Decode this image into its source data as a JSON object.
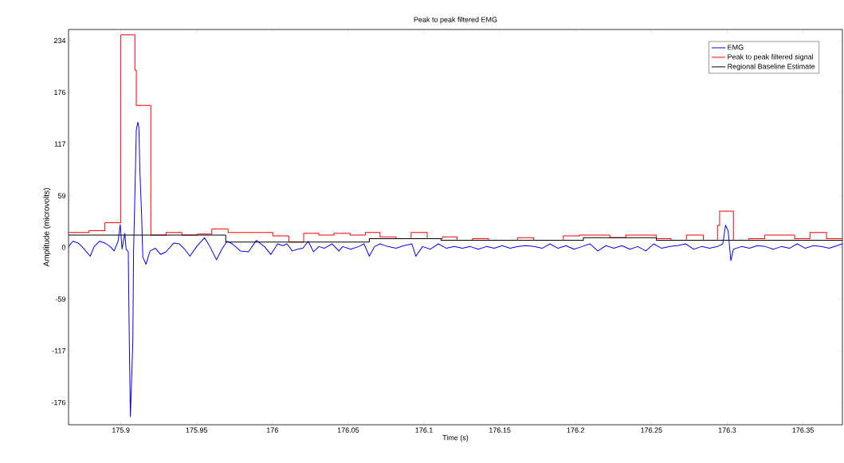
{
  "chart_data": {
    "type": "line",
    "title": "Peak to peak filtered EMG",
    "xlabel": "Time (s)",
    "ylabel": "Amplitude (microvolts)",
    "xlim": [
      175.8655,
      176.376
    ],
    "ylim": [
      -201,
      247
    ],
    "xticks": [
      175.9,
      175.95,
      176,
      176.05,
      176.1,
      176.15,
      176.2,
      176.25,
      176.3,
      176.35
    ],
    "yticks": [
      {
        "value": -175.8,
        "label": "-176"
      },
      {
        "value": -117.2,
        "label": "-117"
      },
      {
        "value": -58.6,
        "label": "-59"
      },
      0,
      {
        "value": 58.6,
        "label": "59"
      },
      {
        "value": 117.2,
        "label": "117"
      },
      {
        "value": 175.8,
        "label": "176"
      },
      {
        "value": 234.4,
        "label": "234"
      }
    ],
    "legend": "top right",
    "series": [
      {
        "name": "EMG",
        "type": "line",
        "color": "#0000ff",
        "x": [
          175.8655,
          175.8684,
          175.8719,
          175.8754,
          175.8798,
          175.8824,
          175.886,
          175.8895,
          175.893,
          175.8956,
          175.8982,
          175.8996,
          175.9008,
          175.9026,
          175.9035,
          175.9049,
          175.9056,
          175.9063,
          175.907,
          175.9079,
          175.9084,
          175.9093,
          175.9102,
          175.9112,
          175.9119,
          175.9126,
          175.9137,
          175.9145,
          175.9166,
          175.9193,
          175.9228,
          175.9263,
          175.9298,
          175.935,
          175.9386,
          175.9421,
          175.9456,
          175.95,
          175.9552,
          175.9587,
          175.9631,
          175.9666,
          175.9701,
          175.9736,
          175.9789,
          175.9842,
          175.9894,
          175.9947,
          175.999,
          176.0034,
          176.0069,
          176.0096,
          176.0131,
          176.0166,
          176.0201,
          176.0236,
          176.0271,
          176.0306,
          176.0341,
          176.0394,
          176.0438,
          176.0464,
          176.0516,
          176.0569,
          176.0604,
          176.0639,
          176.0674,
          176.071,
          176.0762,
          176.0815,
          176.0867,
          176.092,
          176.0946,
          176.099,
          176.1042,
          176.1095,
          176.1148,
          176.12,
          176.1253,
          176.1305,
          176.1358,
          176.1411,
          176.1463,
          176.1516,
          176.1568,
          176.1621,
          176.1674,
          176.1726,
          176.1779,
          176.1831,
          176.1884,
          176.1937,
          176.1989,
          176.2042,
          176.2095,
          176.2147,
          176.22,
          176.2252,
          176.2305,
          176.2358,
          176.241,
          176.2463,
          176.2515,
          176.2568,
          176.2621,
          176.2673,
          176.2726,
          176.2778,
          176.2831,
          176.2884,
          176.2936,
          176.2971,
          176.2989,
          176.3006,
          176.3024,
          176.3041,
          176.3094,
          176.3147,
          176.3199,
          176.3252,
          176.3304,
          176.3357,
          176.341,
          176.3462,
          176.3515,
          176.3567,
          176.362,
          176.3673,
          176.3725,
          176.376
        ],
        "values": [
          1,
          7,
          5,
          -1,
          -10,
          1,
          7,
          5,
          1,
          -4,
          7,
          26,
          -2,
          16,
          -2,
          -5,
          -108,
          -192,
          -156,
          -108,
          -5,
          61,
          133,
          142,
          136,
          85,
          37,
          -11,
          -19,
          -4,
          -1,
          -8,
          -5,
          5,
          4,
          -2,
          -10,
          1,
          11,
          1,
          -14,
          -2,
          7,
          4,
          -4,
          -5,
          8,
          1,
          -8,
          4,
          2,
          4,
          -4,
          -2,
          -1,
          7,
          -5,
          1,
          -1,
          4,
          -4,
          1,
          -2,
          1,
          4,
          -10,
          1,
          4,
          1,
          -1,
          2,
          4,
          -10,
          1,
          -2,
          4,
          -1,
          1,
          -1,
          1,
          -2,
          1,
          -1,
          2,
          -1,
          1,
          2,
          1,
          -1,
          4,
          -1,
          2,
          -2,
          1,
          4,
          -4,
          2,
          -1,
          2,
          -2,
          1,
          -4,
          4,
          -1,
          1,
          2,
          4,
          -2,
          1,
          -1,
          1,
          4,
          25,
          19,
          -15,
          -2,
          1,
          -1,
          2,
          1,
          -2,
          1,
          -1,
          4,
          -1,
          2,
          1,
          -1,
          2,
          4
        ]
      },
      {
        "name": "Peak to peak filtered signal",
        "type": "step",
        "color": "#ff0000",
        "x": [
          175.8655,
          175.879,
          175.8895,
          175.9,
          175.9093,
          175.9102,
          175.9198,
          175.9298,
          175.9403,
          175.9505,
          175.96,
          175.9707,
          176.0003,
          176.0108,
          176.0206,
          176.0306,
          176.0406,
          176.0513,
          176.0613,
          176.071,
          176.0815,
          176.0915,
          176.1021,
          176.1121,
          176.1218,
          176.132,
          176.1425,
          176.1617,
          176.1723,
          176.1919,
          176.2025,
          176.2226,
          176.2331,
          176.2533,
          176.263,
          176.2731,
          176.2843,
          176.2936,
          176.295,
          176.3041,
          176.3143,
          176.3248,
          176.3445,
          176.3546,
          176.3655,
          176.376
        ],
        "values": [
          17,
          19,
          28,
          241,
          201,
          161,
          14,
          17,
          14,
          15,
          21,
          17,
          13,
          6,
          16,
          14,
          16,
          14,
          17,
          12,
          10,
          17,
          10,
          12,
          8,
          10,
          8,
          11,
          8,
          13,
          14,
          11,
          14,
          10,
          8,
          14,
          8,
          25,
          41,
          8,
          10,
          14,
          10,
          17,
          10,
          10
        ]
      },
      {
        "name": "Regional Baseline Estimate",
        "type": "step",
        "color": "#000000",
        "x": [
          175.8655,
          175.9692,
          176.0639,
          176.1112,
          176.2051,
          176.2533,
          176.376
        ],
        "values": [
          14,
          6,
          10,
          8,
          11,
          8,
          8
        ]
      }
    ]
  }
}
